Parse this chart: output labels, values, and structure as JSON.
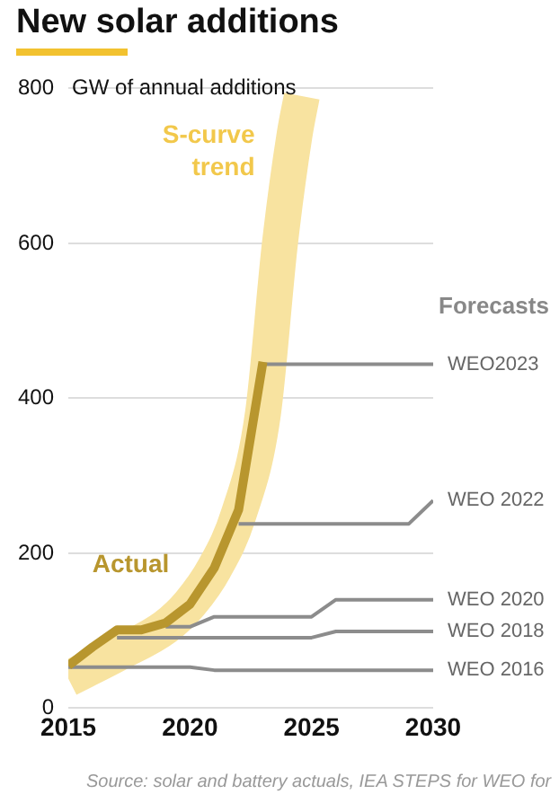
{
  "chart_data": {
    "type": "line",
    "title": "New solar additions",
    "ylabel": "GW of annual additions",
    "xlim": [
      2015,
      2030
    ],
    "xticks": [
      2015,
      2020,
      2025,
      2030
    ],
    "ylim": [
      0,
      800
    ],
    "yticks": [
      0,
      200,
      400,
      600,
      800
    ],
    "grid": "y",
    "legend": false,
    "marker": "none",
    "line_style": "solid",
    "annotations": [
      "Forecasts",
      "Source: solar and battery actuals, IEA STEPS for WEO for"
    ],
    "series": [
      {
        "name": "Actual",
        "color": "#b8962e",
        "x": [
          2015,
          2016,
          2017,
          2018,
          2019,
          2020,
          2021,
          2022,
          2023
        ],
        "values": [
          55,
          79,
          101,
          101,
          110,
          134,
          181,
          256,
          447
        ]
      },
      {
        "name": "WEO2023",
        "color": "#8c8c8c",
        "x": [
          2023,
          2030
        ],
        "values": [
          444,
          444
        ]
      },
      {
        "name": "WEO 2022",
        "color": "#8c8c8c",
        "x": [
          2022,
          2029,
          2030
        ],
        "values": [
          238,
          238,
          268
        ]
      },
      {
        "name": "WEO 2020",
        "color": "#8c8c8c",
        "x": [
          2019,
          2020,
          2021,
          2025,
          2026,
          2030
        ],
        "values": [
          105,
          105,
          118,
          118,
          140,
          140
        ]
      },
      {
        "name": "WEO 2018",
        "color": "#8c8c8c",
        "x": [
          2017,
          2025,
          2026,
          2030
        ],
        "values": [
          91,
          91,
          99,
          99
        ]
      },
      {
        "name": "WEO 2016",
        "color": "#8c8c8c",
        "x": [
          2015,
          2020,
          2021,
          2030
        ],
        "values": [
          53,
          53,
          49,
          49
        ]
      },
      {
        "name": "S-curve trend",
        "color": "#f8e3a0",
        "x": [
          2015,
          2017,
          2019,
          2020,
          2021,
          2022,
          2023,
          2023.7,
          2024.3,
          2024.6
        ],
        "values": [
          38,
          70,
          105,
          135,
          180,
          250,
          380,
          600,
          740,
          790
        ]
      }
    ]
  }
}
